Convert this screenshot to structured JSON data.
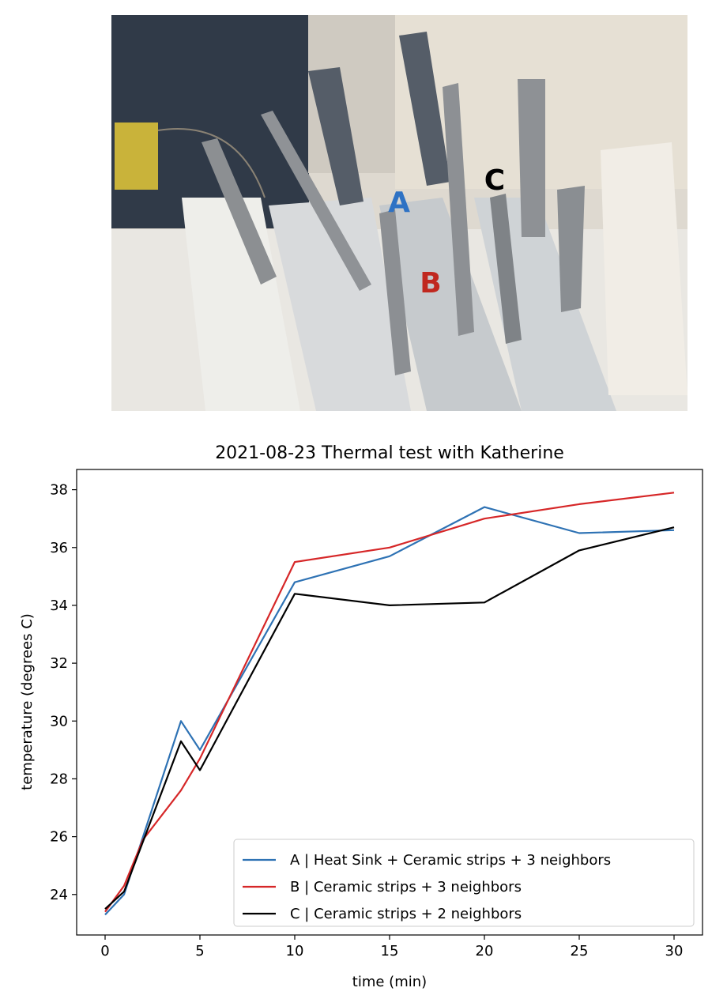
{
  "photo": {
    "labels": [
      {
        "text": "A",
        "color": "#2e72c4"
      },
      {
        "text": "B",
        "color": "#c0281f"
      },
      {
        "text": "C",
        "color": "#000000"
      }
    ]
  },
  "chart_data": {
    "type": "line",
    "title": "2021-08-23 Thermal test with Katherine",
    "xlabel": "time (min)",
    "ylabel": "temperature (degrees C)",
    "xlim": [
      -1.5,
      31.5
    ],
    "ylim": [
      22.6,
      38.7
    ],
    "xticks": [
      0,
      5,
      10,
      15,
      20,
      25,
      30
    ],
    "yticks": [
      24,
      26,
      28,
      30,
      32,
      34,
      36,
      38
    ],
    "grid": false,
    "legend_position": "lower-right",
    "series": [
      {
        "name": "A | Heat Sink + Ceramic strips + 3 neighbors",
        "color": "#2e72b4",
        "x": [
          0,
          1,
          4,
          5,
          10,
          15,
          20,
          25,
          30
        ],
        "y": [
          23.3,
          24.0,
          30.0,
          29.0,
          34.8,
          35.7,
          37.4,
          36.5,
          36.6
        ]
      },
      {
        "name": "B | Ceramic strips + 3 neighbors",
        "color": "#d62728",
        "x": [
          0,
          1,
          2,
          4,
          5,
          10,
          15,
          20,
          25,
          30
        ],
        "y": [
          23.4,
          24.3,
          25.9,
          27.6,
          28.7,
          35.5,
          36.0,
          37.0,
          37.5,
          37.9
        ]
      },
      {
        "name": "C | Ceramic strips + 2 neighbors",
        "color": "#000000",
        "x": [
          0,
          1,
          4,
          5,
          10,
          15,
          20,
          25,
          30
        ],
        "y": [
          23.5,
          24.1,
          29.3,
          28.3,
          34.4,
          34.0,
          34.1,
          35.9,
          36.7
        ]
      }
    ]
  }
}
